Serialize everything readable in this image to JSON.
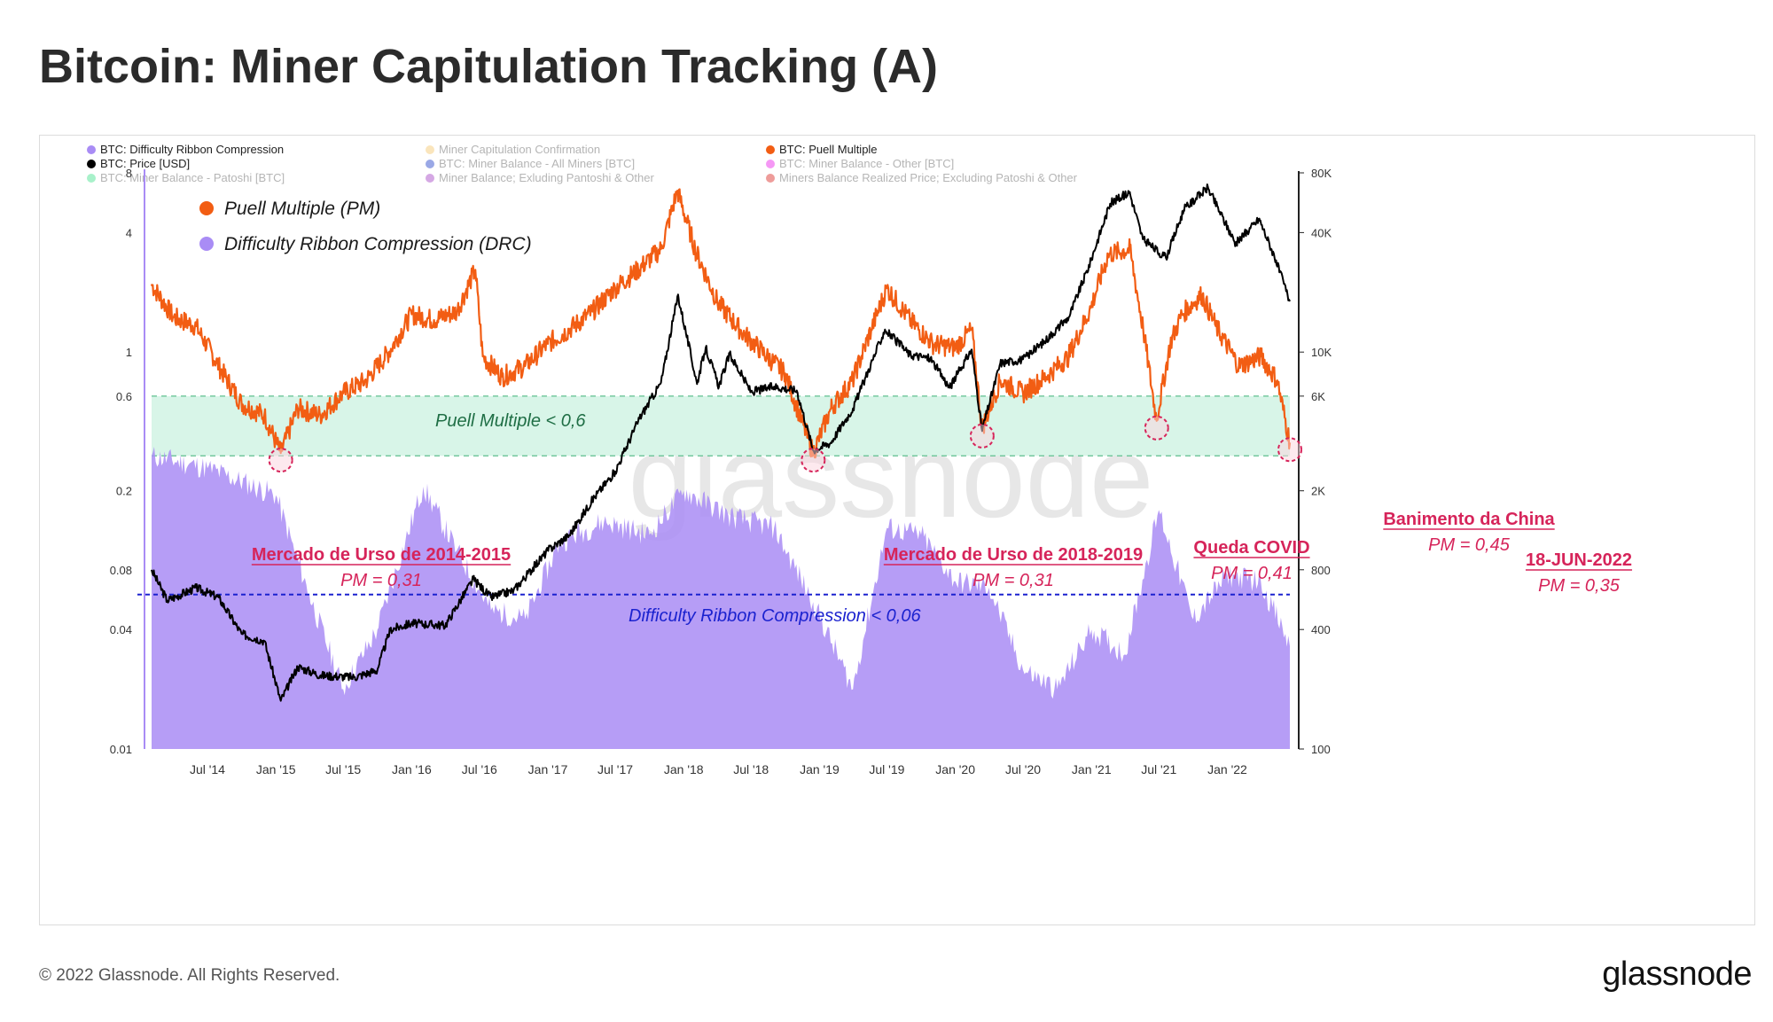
{
  "page": {
    "title": "Bitcoin: Miner Capitulation Tracking (A)",
    "copyright": "© 2022 Glassnode. All Rights Reserved.",
    "brand": "glassnode",
    "watermark": "glassnode"
  },
  "legend": [
    {
      "label": "BTC: Difficulty Ribbon Compression",
      "color": "#a98cf5",
      "active": true
    },
    {
      "label": "Miner Capitulation Confirmation",
      "color": "#f5c66b",
      "active": false
    },
    {
      "label": "BTC: Puell Multiple",
      "color": "#f25d13",
      "active": true
    },
    {
      "label": "BTC: Price [USD]",
      "color": "#000000",
      "active": true
    },
    {
      "label": "BTC: Miner Balance - All Miners [BTC]",
      "color": "#1e3ec8",
      "active": false
    },
    {
      "label": "BTC: Miner Balance - Other [BTC]",
      "color": "#e81ae8",
      "active": false
    },
    {
      "label": "BTC: Miner Balance - Patoshi [BTC]",
      "color": "#3ee08a",
      "active": false
    },
    {
      "label": "Miner Balance; Exluding Pantoshi & Other",
      "color": "#a23fc4",
      "active": false
    },
    {
      "label": "Miners Balance Realized Price; Excluding Patoshi & Other",
      "color": "#d9231f",
      "active": false
    }
  ],
  "key": [
    {
      "label": "Puell Multiple (PM)",
      "color": "#f25d13"
    },
    {
      "label": "Difficulty Ribbon Compression (DRC)",
      "color": "#a98cf5"
    }
  ],
  "zones": {
    "puell_label": "Puell Multiple < 0,6",
    "drc_label": "Difficulty Ribbon Compression < 0,06"
  },
  "annotations": [
    {
      "title": "Mercado de Urso de 2014-2015",
      "value": "PM = 0,31"
    },
    {
      "title": "Mercado de Urso de 2018-2019",
      "value": "PM = 0,31"
    },
    {
      "title": "Queda COVID",
      "value": "PM = 0,41"
    },
    {
      "title": "Banimento da China",
      "value": "PM = 0,45"
    },
    {
      "title": "18-JUN-2022",
      "value": "PM = 0,35"
    }
  ],
  "chart_data": {
    "type": "line",
    "left_axis": {
      "scale": "log",
      "ticks": [
        "8",
        "4",
        "1",
        "0.6",
        "0.2",
        "0.08",
        "0.04",
        "0.01"
      ],
      "range": [
        0.01,
        8
      ]
    },
    "right_axis": {
      "scale": "log",
      "ticks": [
        "80K",
        "40K",
        "10K",
        "6K",
        "2K",
        "800",
        "400",
        "100"
      ],
      "range": [
        100,
        80000
      ],
      "unit": "USD"
    },
    "x_ticks": [
      "Jul '14",
      "Jan '15",
      "Jul '15",
      "Jan '16",
      "Jul '16",
      "Jan '17",
      "Jul '17",
      "Jan '18",
      "Jul '18",
      "Jan '19",
      "Jul '19",
      "Jan '20",
      "Jul '20",
      "Jan '21",
      "Jul '21",
      "Jan '22"
    ],
    "x_range": [
      "2014-02-01",
      "2022-06-18"
    ],
    "thresholds": {
      "puell_upper": 0.6,
      "puell_lower": 0.3,
      "drc": 0.06
    },
    "series": [
      {
        "name": "BTC: Puell Multiple",
        "axis": "left",
        "color": "#f25d13",
        "points": [
          [
            "2014-02-01",
            2.2
          ],
          [
            "2014-04-01",
            1.5
          ],
          [
            "2014-06-01",
            1.35
          ],
          [
            "2014-08-01",
            0.85
          ],
          [
            "2014-10-01",
            0.55
          ],
          [
            "2014-12-01",
            0.48
          ],
          [
            "2015-01-14",
            0.31
          ],
          [
            "2015-03-01",
            0.52
          ],
          [
            "2015-05-01",
            0.48
          ],
          [
            "2015-07-01",
            0.62
          ],
          [
            "2015-09-01",
            0.72
          ],
          [
            "2015-11-01",
            1.0
          ],
          [
            "2016-01-01",
            1.55
          ],
          [
            "2016-03-01",
            1.45
          ],
          [
            "2016-05-01",
            1.6
          ],
          [
            "2016-06-20",
            2.6
          ],
          [
            "2016-07-10",
            0.95
          ],
          [
            "2016-09-01",
            0.75
          ],
          [
            "2016-11-01",
            0.85
          ],
          [
            "2017-01-01",
            1.1
          ],
          [
            "2017-03-01",
            1.3
          ],
          [
            "2017-05-01",
            1.6
          ],
          [
            "2017-07-01",
            2.1
          ],
          [
            "2017-09-01",
            2.6
          ],
          [
            "2017-11-01",
            3.3
          ],
          [
            "2017-12-15",
            6.5
          ],
          [
            "2018-02-01",
            3.3
          ],
          [
            "2018-04-01",
            1.8
          ],
          [
            "2018-06-01",
            1.3
          ],
          [
            "2018-08-01",
            1.0
          ],
          [
            "2018-10-01",
            0.78
          ],
          [
            "2018-12-15",
            0.31
          ],
          [
            "2019-02-01",
            0.52
          ],
          [
            "2019-04-01",
            0.72
          ],
          [
            "2019-05-20",
            1.3
          ],
          [
            "2019-07-01",
            2.1
          ],
          [
            "2019-09-01",
            1.45
          ],
          [
            "2019-11-01",
            1.1
          ],
          [
            "2020-01-01",
            1.05
          ],
          [
            "2020-02-15",
            1.3
          ],
          [
            "2020-03-13",
            0.41
          ],
          [
            "2020-05-01",
            0.72
          ],
          [
            "2020-07-01",
            0.62
          ],
          [
            "2020-09-01",
            0.75
          ],
          [
            "2020-11-01",
            0.95
          ],
          [
            "2021-01-01",
            1.7
          ],
          [
            "2021-02-15",
            3.1
          ],
          [
            "2021-04-15",
            3.3
          ],
          [
            "2021-05-20",
            1.3
          ],
          [
            "2021-06-25",
            0.45
          ],
          [
            "2021-08-01",
            1.1
          ],
          [
            "2021-09-01",
            1.55
          ],
          [
            "2021-10-25",
            1.95
          ],
          [
            "2021-12-01",
            1.35
          ],
          [
            "2022-02-01",
            0.85
          ],
          [
            "2022-04-01",
            0.95
          ],
          [
            "2022-05-15",
            0.72
          ],
          [
            "2022-06-18",
            0.35
          ]
        ]
      },
      {
        "name": "BTC: Price [USD]",
        "axis": "right",
        "color": "#000000",
        "points": [
          [
            "2014-02-01",
            800
          ],
          [
            "2014-03-15",
            560
          ],
          [
            "2014-06-01",
            650
          ],
          [
            "2014-08-01",
            580
          ],
          [
            "2014-10-01",
            380
          ],
          [
            "2014-12-01",
            350
          ],
          [
            "2015-01-14",
            175
          ],
          [
            "2015-03-01",
            260
          ],
          [
            "2015-05-01",
            235
          ],
          [
            "2015-08-01",
            230
          ],
          [
            "2015-10-01",
            250
          ],
          [
            "2015-11-05",
            400
          ],
          [
            "2016-01-01",
            430
          ],
          [
            "2016-04-01",
            420
          ],
          [
            "2016-06-15",
            720
          ],
          [
            "2016-08-01",
            580
          ],
          [
            "2016-10-01",
            630
          ],
          [
            "2017-01-01",
            1000
          ],
          [
            "2017-03-01",
            1200
          ],
          [
            "2017-05-01",
            1800
          ],
          [
            "2017-07-01",
            2500
          ],
          [
            "2017-09-01",
            4500
          ],
          [
            "2017-11-01",
            7000
          ],
          [
            "2017-12-17",
            19500
          ],
          [
            "2018-02-06",
            6900
          ],
          [
            "2018-03-01",
            10500
          ],
          [
            "2018-04-06",
            6700
          ],
          [
            "2018-05-05",
            9800
          ],
          [
            "2018-07-01",
            6300
          ],
          [
            "2018-09-01",
            6700
          ],
          [
            "2018-11-01",
            6400
          ],
          [
            "2018-12-15",
            3200
          ],
          [
            "2019-02-01",
            3500
          ],
          [
            "2019-04-01",
            5200
          ],
          [
            "2019-06-26",
            13000
          ],
          [
            "2019-09-01",
            9700
          ],
          [
            "2019-10-26",
            9300
          ],
          [
            "2019-12-17",
            6600
          ],
          [
            "2020-02-14",
            10300
          ],
          [
            "2020-03-13",
            4000
          ],
          [
            "2020-05-01",
            8800
          ],
          [
            "2020-07-01",
            9200
          ],
          [
            "2020-09-01",
            11500
          ],
          [
            "2020-11-01",
            15000
          ],
          [
            "2020-12-31",
            29000
          ],
          [
            "2021-02-20",
            56000
          ],
          [
            "2021-04-14",
            64000
          ],
          [
            "2021-05-19",
            37000
          ],
          [
            "2021-07-20",
            29800
          ],
          [
            "2021-09-06",
            52000
          ],
          [
            "2021-11-10",
            67500
          ],
          [
            "2022-01-24",
            35000
          ],
          [
            "2022-03-28",
            47000
          ],
          [
            "2022-05-12",
            29000
          ],
          [
            "2022-06-18",
            18000
          ]
        ]
      },
      {
        "name": "BTC: Difficulty Ribbon Compression",
        "axis": "left",
        "type": "area",
        "color": "#a98cf5",
        "points": [
          [
            "2014-02-01",
            0.3
          ],
          [
            "2014-07-01",
            0.26
          ],
          [
            "2015-01-01",
            0.19
          ],
          [
            "2015-04-01",
            0.06
          ],
          [
            "2015-07-01",
            0.02
          ],
          [
            "2015-10-01",
            0.04
          ],
          [
            "2016-02-01",
            0.21
          ],
          [
            "2016-05-01",
            0.1
          ],
          [
            "2016-08-01",
            0.05
          ],
          [
            "2016-11-01",
            0.045
          ],
          [
            "2017-02-01",
            0.11
          ],
          [
            "2017-06-01",
            0.14
          ],
          [
            "2017-10-01",
            0.12
          ],
          [
            "2018-01-01",
            0.2
          ],
          [
            "2018-05-01",
            0.15
          ],
          [
            "2018-09-01",
            0.13
          ],
          [
            "2018-12-15",
            0.055
          ],
          [
            "2019-04-01",
            0.02
          ],
          [
            "2019-07-01",
            0.13
          ],
          [
            "2019-10-01",
            0.12
          ],
          [
            "2020-01-01",
            0.07
          ],
          [
            "2020-04-01",
            0.065
          ],
          [
            "2020-07-01",
            0.025
          ],
          [
            "2020-10-01",
            0.02
          ],
          [
            "2021-01-01",
            0.04
          ],
          [
            "2021-04-01",
            0.03
          ],
          [
            "2021-07-01",
            0.16
          ],
          [
            "2021-10-01",
            0.045
          ],
          [
            "2022-01-01",
            0.075
          ],
          [
            "2022-04-01",
            0.07
          ],
          [
            "2022-06-18",
            0.033
          ]
        ]
      }
    ]
  }
}
